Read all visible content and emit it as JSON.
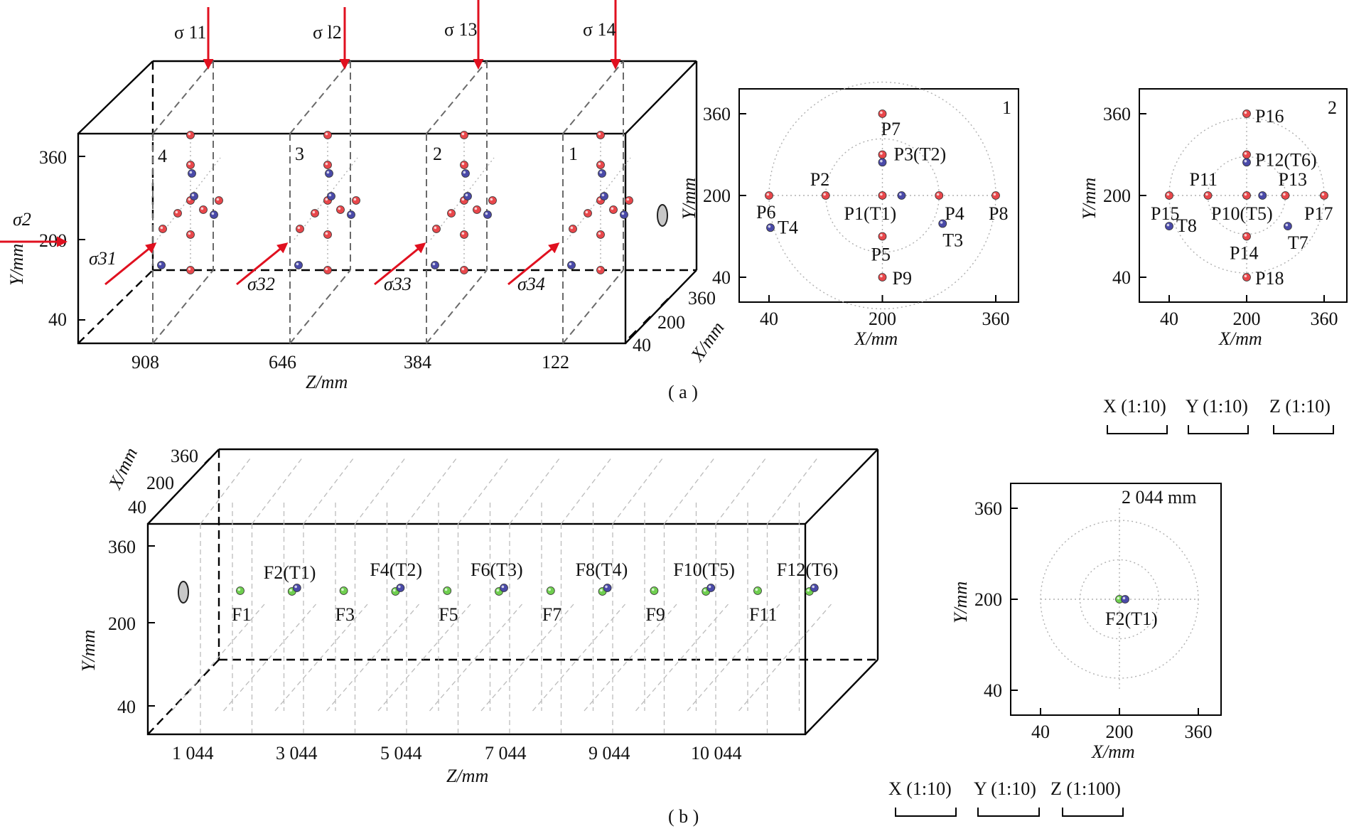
{
  "colors": {
    "pressure_point": "#e8474b",
    "temperature_point": "#4a4aa8",
    "fracture_point": "#6fcf4f",
    "stress_arrow": "#e0101f",
    "borehole": "#c8c8c8"
  },
  "panel_a": {
    "caption": "( a )",
    "block": {
      "y_axis_label": "Y/mm",
      "y_ticks": [
        "360",
        "200",
        "40"
      ],
      "z_axis_label": "Z/mm",
      "z_ticks": [
        "908",
        "646",
        "384",
        "122"
      ],
      "x_axis_label": "X/mm",
      "x_ticks": [
        "360",
        "200",
        "40"
      ],
      "section_labels": [
        "4",
        "3",
        "2",
        "1"
      ],
      "stress_top": [
        "σ 11",
        "σ l2",
        "σ 13",
        "σ 14"
      ],
      "stress_side": [
        "σ31",
        "σ32",
        "σ33",
        "σ34"
      ],
      "stress_left": "σ2"
    },
    "section_1": {
      "number": "1",
      "x_axis_label": "X/mm",
      "y_axis_label": "Y/mm",
      "x_ticks": [
        "40",
        "200",
        "360"
      ],
      "y_ticks": [
        "360",
        "200",
        "40"
      ],
      "points": [
        {
          "label": "P7",
          "x": 200,
          "y": 360,
          "kind": "pressure"
        },
        {
          "label": "P3(T2)",
          "x": 200,
          "y": 280,
          "kind": "pressure"
        },
        {
          "label": "P2",
          "x": 120,
          "y": 200,
          "kind": "pressure"
        },
        {
          "label": "P6",
          "x": 40,
          "y": 200,
          "kind": "pressure"
        },
        {
          "label": "P1(T1)",
          "x": 200,
          "y": 200,
          "kind": "pressure"
        },
        {
          "label": "P4",
          "x": 280,
          "y": 200,
          "kind": "pressure"
        },
        {
          "label": "P8",
          "x": 360,
          "y": 200,
          "kind": "pressure"
        },
        {
          "label": "P5",
          "x": 200,
          "y": 120,
          "kind": "pressure"
        },
        {
          "label": "P9",
          "x": 200,
          "y": 40,
          "kind": "pressure"
        },
        {
          "label": "",
          "x": 200,
          "y": 265,
          "kind": "temperature"
        },
        {
          "label": "",
          "x": 215,
          "y": 200,
          "kind": "temperature"
        },
        {
          "label": "T3",
          "x": 285,
          "y": 145,
          "kind": "temperature"
        },
        {
          "label": "T4",
          "x": 42,
          "y": 137,
          "kind": "temperature"
        }
      ]
    },
    "section_2": {
      "number": "2",
      "x_axis_label": "X/mm",
      "y_axis_label": "Y/mm",
      "x_ticks": [
        "40",
        "200",
        "360"
      ],
      "y_ticks": [
        "360",
        "200",
        "40"
      ],
      "points": [
        {
          "label": "P16",
          "x": 200,
          "y": 360,
          "kind": "pressure"
        },
        {
          "label": "P12(T6)",
          "x": 200,
          "y": 280,
          "kind": "pressure"
        },
        {
          "label": "P11",
          "x": 120,
          "y": 200,
          "kind": "pressure"
        },
        {
          "label": "P15",
          "x": 40,
          "y": 200,
          "kind": "pressure"
        },
        {
          "label": "P10(T5)",
          "x": 200,
          "y": 200,
          "kind": "pressure"
        },
        {
          "label": "P13",
          "x": 280,
          "y": 200,
          "kind": "pressure"
        },
        {
          "label": "P17",
          "x": 360,
          "y": 200,
          "kind": "pressure"
        },
        {
          "label": "P14",
          "x": 200,
          "y": 120,
          "kind": "pressure"
        },
        {
          "label": "P18",
          "x": 200,
          "y": 40,
          "kind": "pressure"
        },
        {
          "label": "",
          "x": 200,
          "y": 265,
          "kind": "temperature"
        },
        {
          "label": "",
          "x": 215,
          "y": 200,
          "kind": "temperature"
        },
        {
          "label": "T7",
          "x": 285,
          "y": 140,
          "kind": "temperature"
        },
        {
          "label": "T8",
          "x": 40,
          "y": 140,
          "kind": "temperature"
        }
      ]
    },
    "scale_labels": [
      "X (1:10)",
      "Y (1:10)",
      "Z (1:10)"
    ]
  },
  "panel_b": {
    "caption": "( b )",
    "block": {
      "y_axis_label": "Y/mm",
      "y_ticks": [
        "360",
        "200",
        "40"
      ],
      "z_axis_label": "Z/mm",
      "z_ticks": [
        "1 044",
        "3 044",
        "5 044",
        "7 044",
        "9 044",
        "10 044"
      ],
      "x_axis_label": "X/mm",
      "x_ticks": [
        "360",
        "200",
        "40"
      ],
      "points": [
        {
          "label": "F1",
          "temp": false
        },
        {
          "label": "F2(T1)",
          "temp": true
        },
        {
          "label": "F3",
          "temp": false
        },
        {
          "label": "F4(T2)",
          "temp": true
        },
        {
          "label": "F5",
          "temp": false
        },
        {
          "label": "F6(T3)",
          "temp": true
        },
        {
          "label": "F7",
          "temp": false
        },
        {
          "label": "F8(T4)",
          "temp": true
        },
        {
          "label": "F9",
          "temp": false
        },
        {
          "label": "F10(T5)",
          "temp": true
        },
        {
          "label": "F11",
          "temp": false
        },
        {
          "label": "F12(T6)",
          "temp": true
        }
      ]
    },
    "section": {
      "depth_label": "2 044 mm",
      "x_axis_label": "X/mm",
      "y_axis_label": "Y/mm",
      "x_ticks": [
        "40",
        "200",
        "360"
      ],
      "y_ticks": [
        "360",
        "200",
        "40"
      ],
      "point_label": "F2(T1)"
    },
    "scale_labels": [
      "X (1:10)",
      "Y (1:10)",
      "Z (1:100)"
    ]
  }
}
